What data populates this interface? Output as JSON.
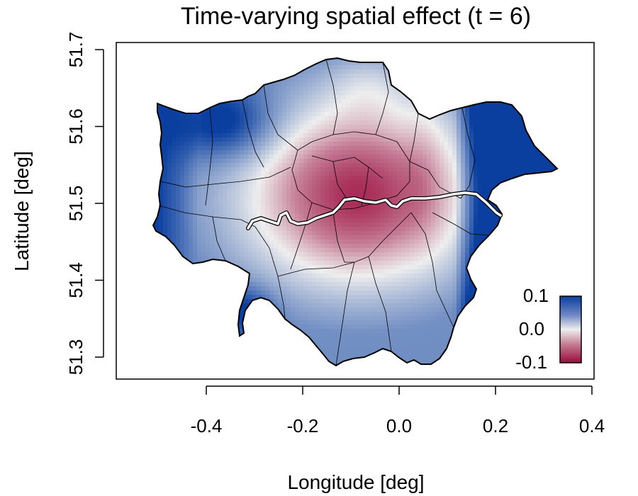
{
  "chart_data": {
    "type": "heatmap",
    "title": "Time-varying spatial effect (t = 6)",
    "xlabel": "Longitude [deg]",
    "ylabel": "Latitude [deg]",
    "xlim": [
      -0.6,
      0.4
    ],
    "ylim": [
      51.27,
      51.71
    ],
    "x_ticks": [
      {
        "value": -0.4,
        "label": "-0.4"
      },
      {
        "value": -0.2,
        "label": "-0.2"
      },
      {
        "value": 0.0,
        "label": "0.0"
      },
      {
        "value": 0.2,
        "label": "0.2"
      },
      {
        "value": 0.4,
        "label": "0.4"
      }
    ],
    "y_ticks": [
      {
        "value": 51.3,
        "label": "51.3"
      },
      {
        "value": 51.4,
        "label": "51.4"
      },
      {
        "value": 51.5,
        "label": "51.5"
      },
      {
        "value": 51.6,
        "label": "51.6"
      },
      {
        "value": 51.7,
        "label": "51.7"
      }
    ],
    "legend": {
      "placement": "bottom-right",
      "min": -0.1,
      "max": 0.1,
      "labels": [
        "0.1",
        "0.0",
        "-0.1"
      ],
      "colors": {
        "high": "#0a3fa0",
        "mid": "#eeeeee",
        "low": "#9b0a3c"
      }
    },
    "river_color": "#ffffff"
  }
}
